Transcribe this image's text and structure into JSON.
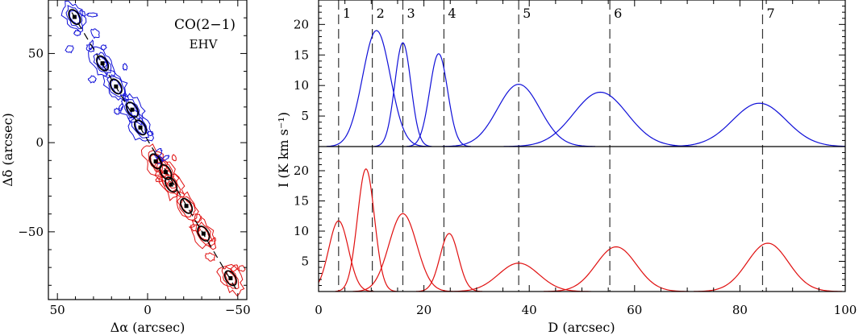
{
  "chart_data": [
    {
      "type": "scatter",
      "panel": "left",
      "annotation_line1": "CO(2−1)",
      "annotation_line2": "EHV",
      "xlabel": "Δα (arcsec)",
      "ylabel": "Δδ (arcsec)",
      "xlim": [
        55,
        -55
      ],
      "ylim": [
        -88,
        80
      ],
      "x_ticks": [
        50,
        0,
        -50
      ],
      "x_tick_labels": [
        "50",
        "0",
        "−50"
      ],
      "y_ticks": [
        50,
        0,
        -50
      ],
      "y_tick_labels": [
        "50",
        "0",
        "−50"
      ],
      "knots": [
        {
          "x": 40.5,
          "y": 70.5,
          "lobe": "blue"
        },
        {
          "x": 25.0,
          "y": 44.5,
          "lobe": "blue"
        },
        {
          "x": 17.5,
          "y": 31.5,
          "lobe": "blue"
        },
        {
          "x": 8.5,
          "y": 18.5,
          "lobe": "blue"
        },
        {
          "x": 4.0,
          "y": 8.5,
          "lobe": "blue"
        },
        {
          "x": -4.5,
          "y": -10.5,
          "lobe": "red"
        },
        {
          "x": -10.0,
          "y": -16.5,
          "lobe": "red"
        },
        {
          "x": -13.0,
          "y": -23.5,
          "lobe": "red"
        },
        {
          "x": -21.5,
          "y": -35.5,
          "lobe": "red"
        },
        {
          "x": -31.0,
          "y": -51.0,
          "lobe": "red"
        },
        {
          "x": -46.0,
          "y": -76.0,
          "lobe": "red"
        }
      ],
      "colors": {
        "blue": "#1010d8",
        "red": "#e01010",
        "axis": "#000000"
      }
    },
    {
      "type": "line",
      "panel": "right",
      "xlabel": "D (arcsec)",
      "ylabel": "I (K km s⁻¹)",
      "xlim": [
        0,
        100
      ],
      "x_ticks": [
        0,
        20,
        40,
        60,
        80,
        100
      ],
      "x_tick_labels": [
        "0",
        "20",
        "40",
        "60",
        "80",
        "100"
      ],
      "y_ticks": [
        5,
        10,
        15,
        20
      ],
      "y_tick_labels": [
        "5",
        "10",
        "15",
        "20"
      ],
      "top_ylim": [
        0,
        24
      ],
      "bottom_ylim": [
        0,
        24
      ],
      "vlines": [
        {
          "label": "1",
          "x": 3.8
        },
        {
          "label": "2",
          "x": 10.2
        },
        {
          "label": "3",
          "x": 16.0
        },
        {
          "label": "4",
          "x": 23.8
        },
        {
          "label": "5",
          "x": 38.0
        },
        {
          "label": "6",
          "x": 55.3
        },
        {
          "label": "7",
          "x": 84.3
        }
      ],
      "top_series_blue": [
        {
          "center": 11.0,
          "amp": 19.0,
          "fwhm": 6.2
        },
        {
          "center": 16.0,
          "amp": 17.0,
          "fwhm": 3.6
        },
        {
          "center": 22.8,
          "amp": 15.2,
          "fwhm": 4.0
        },
        {
          "center": 38.0,
          "amp": 10.2,
          "fwhm": 9.5
        },
        {
          "center": 53.5,
          "amp": 8.9,
          "fwhm": 12.0
        },
        {
          "center": 83.7,
          "amp": 7.1,
          "fwhm": 12.0
        }
      ],
      "bottom_series_red": [
        {
          "center": 3.8,
          "amp": 11.7,
          "fwhm": 4.4
        },
        {
          "center": 9.0,
          "amp": 20.3,
          "fwhm": 3.8
        },
        {
          "center": 16.0,
          "amp": 12.9,
          "fwhm": 6.2
        },
        {
          "center": 24.8,
          "amp": 9.6,
          "fwhm": 4.1
        },
        {
          "center": 38.0,
          "amp": 4.7,
          "fwhm": 9.0
        },
        {
          "center": 56.5,
          "amp": 7.4,
          "fwhm": 9.0
        },
        {
          "center": 85.3,
          "amp": 8.0,
          "fwhm": 9.2
        }
      ],
      "colors": {
        "blue": "#1010d8",
        "red": "#e01010",
        "dash": "#333333"
      }
    }
  ]
}
